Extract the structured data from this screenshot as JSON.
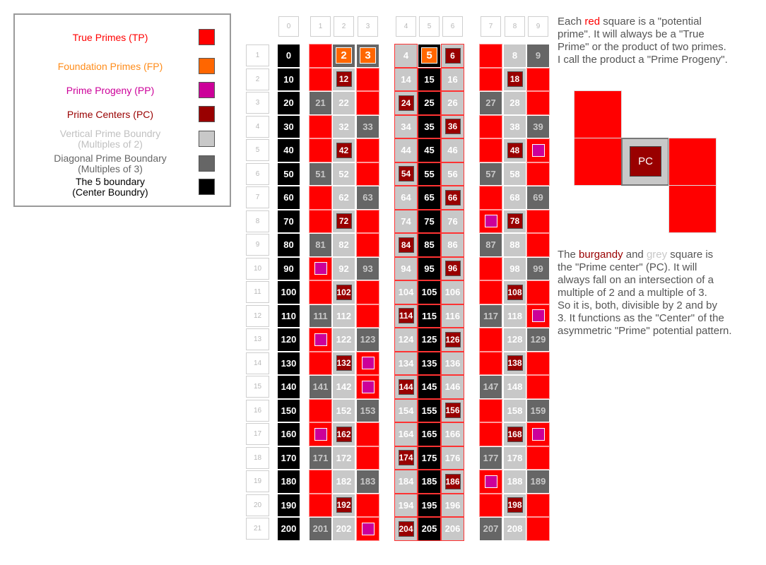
{
  "legend": {
    "items": [
      {
        "label": "True Primes (TP)",
        "color": "#ff0000",
        "text_color": "#ff0000",
        "key": "tp"
      },
      {
        "label": "Foundation Primes (FP)",
        "color": "#ff6600",
        "text_color": "#ff8c1a",
        "key": "fp"
      },
      {
        "label": "Prime Progeny (PP)",
        "color": "#cc0099",
        "text_color": "#cc0099",
        "key": "pp"
      },
      {
        "label": "Prime Centers (PC)",
        "color": "#990000",
        "text_color": "#990000",
        "key": "pc"
      },
      {
        "label": "Vertical Prime Boundry\n(Multiples of 2)",
        "color": "#c8c8c8",
        "text_color": "#c0c0c0",
        "key": "vb"
      },
      {
        "label": "Diagonal Prime Boundary\n(Multiples of 3)",
        "color": "#666666",
        "text_color": "#666666",
        "key": "db"
      },
      {
        "label": "The 5 boundary\n(Center Boundry)",
        "color": "#000000",
        "text_color": "#000000",
        "key": "cb"
      }
    ]
  },
  "grid": {
    "column_headers": [
      "0",
      "1",
      "2",
      "3",
      "4",
      "5",
      "6",
      "7",
      "8",
      "9"
    ],
    "row_headers": [
      "1",
      "2",
      "3",
      "4",
      "5",
      "6",
      "7",
      "8",
      "9",
      "10",
      "11",
      "12",
      "13",
      "14",
      "15",
      "16",
      "17",
      "18",
      "19",
      "20",
      "21"
    ],
    "start_value": 0,
    "row_step": 10
  },
  "explanations": {
    "red_square": {
      "pre": "Each ",
      "highlight": "red",
      "post": " square is a \"potential\nprime\".  It will always be a \"True\nPrime\" or the product of two primes.\nI call the product a \"Prime Progeny\"."
    },
    "prime_center": {
      "pre": "The ",
      "highlight1": "burgandy",
      "mid": " and ",
      "highlight2": "grey",
      "post": " square is\nthe \"Prime center\" (PC).  It will\nalways fall on an intersection of a\nmultiple of 2 and a multiple of 3.\nSo it is, both, divisible by 2 and by\n3. It functions as the \"Center\" of the\nasymmetric \"Prime\" potential pattern."
    }
  },
  "pc_diagram": {
    "center_label": "PC"
  },
  "colors": {
    "true_prime": "#ff0000",
    "foundation_prime": "#ff6600",
    "prime_progeny": "#cc0099",
    "prime_center": "#990000",
    "vertical_boundary": "#c8c8c8",
    "diagonal_boundary": "#666666",
    "center_boundary": "#000000",
    "header_text": "#b8b8b8"
  }
}
